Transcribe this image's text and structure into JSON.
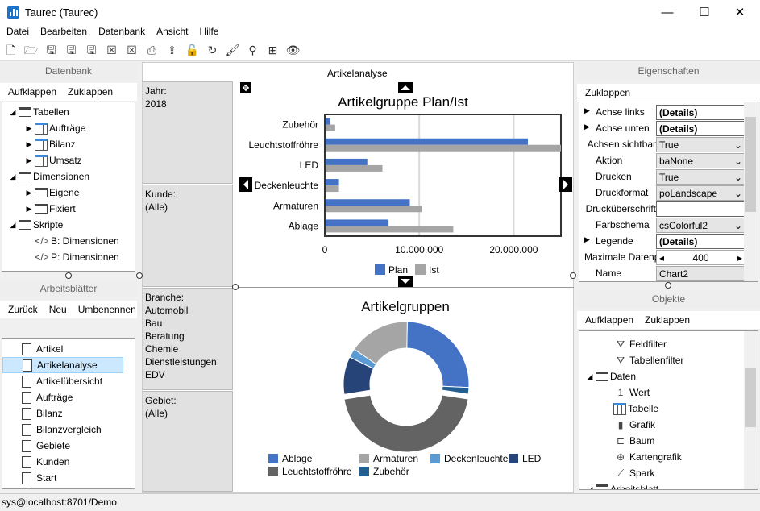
{
  "window": {
    "title": "Taurec (Taurec)",
    "minimize": "—",
    "maximize": "☐",
    "close": "✕"
  },
  "menu": [
    "Datei",
    "Bearbeiten",
    "Datenbank",
    "Ansicht",
    "Hilfe"
  ],
  "toolbar": [
    {
      "icon": "new-file-icon",
      "glyph": "🗋"
    },
    {
      "icon": "open-folder-icon",
      "glyph": "🗁"
    },
    {
      "icon": "save-icon",
      "glyph": "🖫"
    },
    {
      "icon": "save-as-icon",
      "glyph": "🖫"
    },
    {
      "icon": "save-all-icon",
      "glyph": "🖫"
    },
    {
      "icon": "close-icon",
      "glyph": "☒"
    },
    {
      "icon": "close-all-icon",
      "glyph": "☒"
    },
    {
      "icon": "print-icon",
      "glyph": "⎙"
    },
    {
      "icon": "export-icon",
      "glyph": "⇪"
    },
    {
      "icon": "lock-icon",
      "glyph": "🔓"
    },
    {
      "icon": "refresh-icon",
      "glyph": "↻"
    },
    {
      "icon": "paint-roller-icon",
      "glyph": "🖌"
    },
    {
      "icon": "search-icon",
      "glyph": "⚲"
    },
    {
      "icon": "structure-icon",
      "glyph": "⊞"
    },
    {
      "icon": "eye-icon",
      "glyph": "👁"
    }
  ],
  "database": {
    "header": "Datenbank",
    "expand": "Aufklappen",
    "collapse": "Zuklappen",
    "tree": [
      {
        "label": "Tabellen",
        "level": 0,
        "arrow": "◢",
        "icon": "folder"
      },
      {
        "label": "Aufträge",
        "level": 1,
        "arrow": "▶",
        "icon": "table"
      },
      {
        "label": "Bilanz",
        "level": 1,
        "arrow": "▶",
        "icon": "table"
      },
      {
        "label": "Umsatz",
        "level": 1,
        "arrow": "▶",
        "icon": "table"
      },
      {
        "label": "Dimensionen",
        "level": 0,
        "arrow": "◢",
        "icon": "folder"
      },
      {
        "label": "Eigene",
        "level": 1,
        "arrow": "▶",
        "icon": "folder"
      },
      {
        "label": "Fixiert",
        "level": 1,
        "arrow": "▶",
        "icon": "folder"
      },
      {
        "label": "Skripte",
        "level": 0,
        "arrow": "◢",
        "icon": "folder"
      },
      {
        "label": "B: Dimensionen",
        "level": 1,
        "arrow": "",
        "icon": "code"
      },
      {
        "label": "P: Dimensionen",
        "level": 1,
        "arrow": "",
        "icon": "code"
      }
    ]
  },
  "worksheets": {
    "header": "Arbeitsblätter",
    "back": "Zurück",
    "new": "Neu",
    "rename": "Umbenennen",
    "selected": "Artikelanalyse",
    "items": [
      "Artikel",
      "Artikelanalyse",
      "Artikelübersicht",
      "Aufträge",
      "Bilanz",
      "Bilanzvergleich",
      "Gebiete",
      "Kunden",
      "Start"
    ]
  },
  "filters": [
    {
      "label": "Jahr:",
      "values": [
        "2018"
      ]
    },
    {
      "label": "Kunde:",
      "values": [
        "(Alle)"
      ]
    },
    {
      "label": "Branche:",
      "values": [
        "Automobil",
        "Bau",
        "Beratung",
        "Chemie",
        "Dienstleistungen",
        "EDV"
      ]
    },
    {
      "label": "Gebiet:",
      "values": [
        "(Alle)"
      ]
    }
  ],
  "sheet_title": "Artikelanalyse",
  "chart_data": [
    {
      "type": "bar",
      "orientation": "horizontal",
      "title": "Artikelgruppe Plan/Ist",
      "categories": [
        "Ablage",
        "Armaturen",
        "Deckenleuchte",
        "LED",
        "Leuchtstoffröhre",
        "Zubehör"
      ],
      "series": [
        {
          "name": "Plan",
          "color": "#4472c4",
          "values": [
            6750000,
            9000000,
            1500000,
            4500000,
            21500000,
            600000
          ]
        },
        {
          "name": "Ist",
          "color": "#a5a5a5",
          "values": [
            13600000,
            10300000,
            1500000,
            6100000,
            25000000,
            1100000
          ]
        }
      ],
      "xlim": [
        0,
        25000000
      ],
      "xticks": [
        "0",
        "10.000.000",
        "20.000.000"
      ],
      "grid": true,
      "legend": "bottom"
    },
    {
      "type": "pie",
      "donut": true,
      "title": "Artikelgruppen",
      "legend": "bottom",
      "slices": [
        {
          "name": "Ablage",
          "value": 25.5,
          "color": "#4472c4"
        },
        {
          "name": "Zubehör",
          "value": 1.7,
          "color": "#255e91"
        },
        {
          "name": "Leuchtstoffröhre",
          "value": 45,
          "color": "#636363",
          "exploded": true
        },
        {
          "name": "LED",
          "value": 9.7,
          "color": "#264478"
        },
        {
          "name": "Deckenleuchte",
          "value": 2.3,
          "color": "#5b9bd5"
        },
        {
          "name": "Armaturen",
          "value": 15.8,
          "color": "#a5a5a5"
        }
      ],
      "legend_order": [
        "Ablage",
        "Armaturen",
        "Deckenleuchte",
        "LED",
        "Leuchtstoffröhre",
        "Zubehör"
      ]
    }
  ],
  "properties": {
    "header": "Eigenschaften",
    "collapse": "Zuklappen",
    "rows": [
      {
        "name": "Achse links",
        "value": "(Details)",
        "expand": true,
        "kind": "details"
      },
      {
        "name": "Achse unten",
        "value": "(Details)",
        "expand": true,
        "kind": "details"
      },
      {
        "name": "Achsen sichtbar",
        "value": "True",
        "kind": "combo"
      },
      {
        "name": "Aktion",
        "value": "baNone",
        "kind": "combo"
      },
      {
        "name": "Drucken",
        "value": "True",
        "kind": "combo"
      },
      {
        "name": "Druckformat",
        "value": "poLandscape",
        "kind": "combo"
      },
      {
        "name": "Drucküberschrift",
        "value": "",
        "kind": "text"
      },
      {
        "name": "Farbschema",
        "value": "csColorful2",
        "kind": "combo"
      },
      {
        "name": "Legende",
        "value": "(Details)",
        "expand": true,
        "kind": "details"
      },
      {
        "name": "Maximale Datenpunkte",
        "value": "400",
        "kind": "spin"
      },
      {
        "name": "Name",
        "value": "Chart2",
        "kind": "plain"
      }
    ]
  },
  "objects": {
    "header": "Objekte",
    "expand": "Aufklappen",
    "collapse": "Zuklappen",
    "tree": [
      {
        "label": "Feldfilter",
        "level": 1,
        "icon": "funnel"
      },
      {
        "label": "Tabellenfilter",
        "level": 1,
        "icon": "funnel"
      },
      {
        "label": "Daten",
        "level": 0,
        "arrow": "◢",
        "icon": "folder"
      },
      {
        "label": "Wert",
        "level": 1,
        "icon": "value"
      },
      {
        "label": "Tabelle",
        "level": 1,
        "icon": "table"
      },
      {
        "label": "Grafik",
        "level": 1,
        "icon": "chart"
      },
      {
        "label": "Baum",
        "level": 1,
        "icon": "tree"
      },
      {
        "label": "Kartengrafik",
        "level": 1,
        "icon": "globe"
      },
      {
        "label": "Spark",
        "level": 1,
        "icon": "spark"
      },
      {
        "label": "Arbeitsblatt",
        "level": 0,
        "arrow": "◢",
        "icon": "folder"
      }
    ]
  },
  "status": "sys@localhost:8701/Demo"
}
